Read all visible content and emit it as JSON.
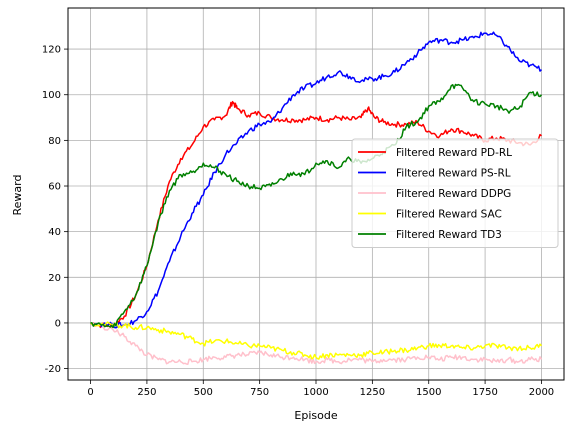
{
  "chart_data": {
    "type": "line",
    "title": "",
    "xlabel": "Episode",
    "ylabel": "Reward",
    "xlim": [
      -100,
      2100
    ],
    "ylim": [
      -25,
      138
    ],
    "x_ticks": [
      0,
      250,
      500,
      750,
      1000,
      1250,
      1500,
      1750,
      2000
    ],
    "y_ticks": [
      -20,
      0,
      20,
      40,
      60,
      80,
      100,
      120
    ],
    "grid": true,
    "legend_position": "center-right",
    "series": [
      {
        "name": "Filtered Reward PD-RL",
        "color": "#ff0000",
        "points": [
          [
            0,
            0
          ],
          [
            50,
            -1
          ],
          [
            100,
            -1
          ],
          [
            150,
            3
          ],
          [
            200,
            12
          ],
          [
            250,
            25
          ],
          [
            300,
            45
          ],
          [
            350,
            62
          ],
          [
            400,
            72
          ],
          [
            450,
            78
          ],
          [
            500,
            86
          ],
          [
            550,
            89
          ],
          [
            600,
            91
          ],
          [
            630,
            97
          ],
          [
            650,
            94
          ],
          [
            700,
            91
          ],
          [
            750,
            92
          ],
          [
            800,
            90
          ],
          [
            850,
            89
          ],
          [
            900,
            89
          ],
          [
            950,
            89
          ],
          [
            1000,
            90
          ],
          [
            1050,
            89
          ],
          [
            1100,
            90
          ],
          [
            1150,
            89
          ],
          [
            1200,
            90
          ],
          [
            1230,
            94
          ],
          [
            1260,
            90
          ],
          [
            1300,
            88
          ],
          [
            1350,
            87
          ],
          [
            1400,
            87
          ],
          [
            1450,
            88
          ],
          [
            1500,
            84
          ],
          [
            1550,
            82
          ],
          [
            1600,
            85
          ],
          [
            1650,
            84
          ],
          [
            1700,
            82
          ],
          [
            1750,
            80
          ],
          [
            1800,
            81
          ],
          [
            1850,
            80
          ],
          [
            1900,
            79
          ],
          [
            1950,
            78
          ],
          [
            2000,
            82
          ]
        ]
      },
      {
        "name": "Filtered Reward PS-RL",
        "color": "#0000ff",
        "points": [
          [
            0,
            0
          ],
          [
            100,
            -1
          ],
          [
            150,
            -1
          ],
          [
            200,
            1
          ],
          [
            250,
            5
          ],
          [
            300,
            14
          ],
          [
            350,
            27
          ],
          [
            400,
            38
          ],
          [
            450,
            48
          ],
          [
            500,
            56
          ],
          [
            550,
            66
          ],
          [
            600,
            74
          ],
          [
            650,
            79
          ],
          [
            700,
            84
          ],
          [
            750,
            87
          ],
          [
            800,
            88
          ],
          [
            850,
            94
          ],
          [
            900,
            100
          ],
          [
            950,
            103
          ],
          [
            1000,
            105
          ],
          [
            1050,
            108
          ],
          [
            1100,
            110
          ],
          [
            1150,
            108
          ],
          [
            1200,
            106
          ],
          [
            1250,
            107
          ],
          [
            1300,
            108
          ],
          [
            1350,
            110
          ],
          [
            1400,
            114
          ],
          [
            1450,
            118
          ],
          [
            1500,
            123
          ],
          [
            1550,
            124
          ],
          [
            1600,
            123
          ],
          [
            1650,
            124
          ],
          [
            1700,
            125
          ],
          [
            1750,
            127
          ],
          [
            1800,
            126
          ],
          [
            1850,
            121
          ],
          [
            1900,
            115
          ],
          [
            1950,
            113
          ],
          [
            2000,
            111
          ]
        ]
      },
      {
        "name": "Filtered Reward DDPG",
        "color": "#ffc0cb",
        "points": [
          [
            0,
            0
          ],
          [
            100,
            -3
          ],
          [
            150,
            -6
          ],
          [
            200,
            -10
          ],
          [
            250,
            -14
          ],
          [
            300,
            -16
          ],
          [
            350,
            -17
          ],
          [
            400,
            -17
          ],
          [
            450,
            -17
          ],
          [
            500,
            -16
          ],
          [
            550,
            -15
          ],
          [
            600,
            -15
          ],
          [
            650,
            -14
          ],
          [
            700,
            -14
          ],
          [
            750,
            -13
          ],
          [
            800,
            -14
          ],
          [
            850,
            -15
          ],
          [
            900,
            -15
          ],
          [
            950,
            -16
          ],
          [
            1000,
            -17
          ],
          [
            1050,
            -16
          ],
          [
            1100,
            -17
          ],
          [
            1150,
            -16
          ],
          [
            1200,
            -16
          ],
          [
            1250,
            -17
          ],
          [
            1300,
            -16
          ],
          [
            1350,
            -16
          ],
          [
            1400,
            -16
          ],
          [
            1450,
            -15
          ],
          [
            1500,
            -15
          ],
          [
            1550,
            -16
          ],
          [
            1600,
            -15
          ],
          [
            1650,
            -15
          ],
          [
            1700,
            -16
          ],
          [
            1750,
            -16
          ],
          [
            1800,
            -17
          ],
          [
            1850,
            -16
          ],
          [
            1900,
            -17
          ],
          [
            1950,
            -16
          ],
          [
            2000,
            -16
          ]
        ]
      },
      {
        "name": "Filtered Reward SAC",
        "color": "#ffff00",
        "points": [
          [
            0,
            0
          ],
          [
            100,
            -1
          ],
          [
            150,
            -1
          ],
          [
            200,
            -2
          ],
          [
            250,
            -2
          ],
          [
            300,
            -3
          ],
          [
            350,
            -4
          ],
          [
            400,
            -5
          ],
          [
            450,
            -7
          ],
          [
            500,
            -9
          ],
          [
            550,
            -8
          ],
          [
            600,
            -8
          ],
          [
            650,
            -9
          ],
          [
            700,
            -10
          ],
          [
            750,
            -10
          ],
          [
            800,
            -11
          ],
          [
            850,
            -12
          ],
          [
            900,
            -13
          ],
          [
            950,
            -14
          ],
          [
            1000,
            -15
          ],
          [
            1050,
            -14
          ],
          [
            1100,
            -14
          ],
          [
            1150,
            -14
          ],
          [
            1200,
            -14
          ],
          [
            1250,
            -13
          ],
          [
            1300,
            -13
          ],
          [
            1350,
            -12
          ],
          [
            1400,
            -12
          ],
          [
            1450,
            -11
          ],
          [
            1500,
            -10
          ],
          [
            1550,
            -10
          ],
          [
            1600,
            -10
          ],
          [
            1650,
            -11
          ],
          [
            1700,
            -11
          ],
          [
            1750,
            -10
          ],
          [
            1800,
            -10
          ],
          [
            1850,
            -11
          ],
          [
            1900,
            -11
          ],
          [
            1950,
            -11
          ],
          [
            2000,
            -10
          ]
        ]
      },
      {
        "name": "Filtered Reward TD3",
        "color": "#008000",
        "points": [
          [
            0,
            0
          ],
          [
            50,
            -1
          ],
          [
            100,
            -2
          ],
          [
            150,
            5
          ],
          [
            200,
            12
          ],
          [
            250,
            25
          ],
          [
            300,
            44
          ],
          [
            350,
            58
          ],
          [
            400,
            65
          ],
          [
            450,
            66
          ],
          [
            500,
            70
          ],
          [
            550,
            68
          ],
          [
            600,
            65
          ],
          [
            650,
            62
          ],
          [
            700,
            60
          ],
          [
            750,
            59
          ],
          [
            800,
            60
          ],
          [
            850,
            63
          ],
          [
            900,
            66
          ],
          [
            950,
            65
          ],
          [
            1000,
            70
          ],
          [
            1050,
            71
          ],
          [
            1100,
            68
          ],
          [
            1150,
            72
          ],
          [
            1200,
            70
          ],
          [
            1250,
            72
          ],
          [
            1300,
            75
          ],
          [
            1350,
            78
          ],
          [
            1400,
            86
          ],
          [
            1450,
            88
          ],
          [
            1500,
            95
          ],
          [
            1550,
            97
          ],
          [
            1600,
            104
          ],
          [
            1650,
            103
          ],
          [
            1700,
            97
          ],
          [
            1750,
            96
          ],
          [
            1800,
            95
          ],
          [
            1850,
            93
          ],
          [
            1900,
            94
          ],
          [
            1950,
            101
          ],
          [
            2000,
            100
          ]
        ]
      }
    ]
  }
}
